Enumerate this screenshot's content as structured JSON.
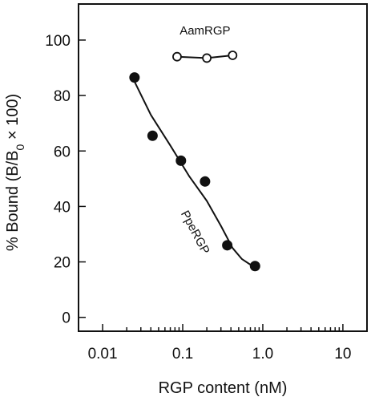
{
  "chart_data": {
    "type": "scatter",
    "title": "",
    "xlabel": "RGP content (nM)",
    "ylabel_parts": {
      "prefix": "% Bound (B/B",
      "subscript": "0",
      "suffix": " × 100)"
    },
    "x_scale": "log",
    "xlim": [
      0.005,
      20
    ],
    "ylim": [
      -5,
      113
    ],
    "x_ticks": [
      0.01,
      0.1,
      1.0,
      10
    ],
    "x_tick_labels": [
      "0.01",
      "0.1",
      "1.0",
      "10"
    ],
    "y_ticks": [
      0,
      20,
      40,
      60,
      80,
      100
    ],
    "y_tick_labels": [
      "0",
      "20",
      "40",
      "60",
      "80",
      "100"
    ],
    "series": [
      {
        "name": "AamRGP",
        "marker": "open-circle",
        "line": "straight",
        "x": [
          0.085,
          0.2,
          0.42
        ],
        "y": [
          94,
          93.5,
          94.5
        ],
        "line_x": [
          0.085,
          0.2,
          0.42
        ],
        "line_y": [
          94,
          93.5,
          94.5
        ]
      },
      {
        "name": "PpeRGP",
        "marker": "filled-circle",
        "line": "fitted-curve",
        "x": [
          0.025,
          0.042,
          0.095,
          0.19,
          0.36,
          0.8
        ],
        "y": [
          86.5,
          65.5,
          56.5,
          49,
          26,
          18.5
        ],
        "line_x": [
          0.025,
          0.04,
          0.07,
          0.12,
          0.2,
          0.3,
          0.42,
          0.55,
          0.7,
          0.8
        ],
        "line_y": [
          85,
          73,
          62,
          51,
          42,
          33,
          25,
          21,
          19,
          18.5
        ]
      }
    ]
  }
}
